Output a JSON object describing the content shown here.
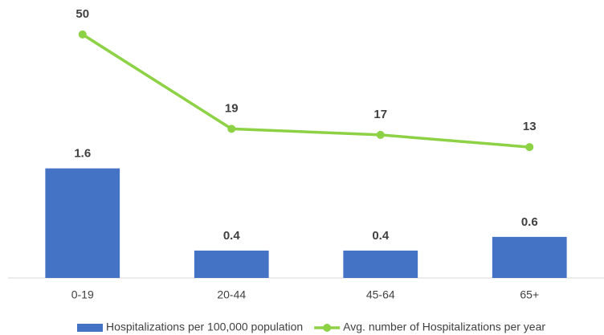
{
  "chart_data": {
    "type": "bar_line",
    "categories": [
      "0-19",
      "20-44",
      "45-64",
      "65+"
    ],
    "series": [
      {
        "name": "Hospitalizations per 100,000 population",
        "color": "#4472c4",
        "type": "bar",
        "axis": "y",
        "values": [
          1.6,
          0.4,
          0.4,
          0.6
        ]
      },
      {
        "name": "Avg. number of Hospitalizations per year",
        "color": "#8dd145",
        "type": "line",
        "axis": "y2",
        "values": [
          50,
          19,
          17,
          13
        ]
      }
    ],
    "ylim": [
      0,
      4
    ],
    "y2lim": [
      -30,
      60
    ],
    "legend": "bottom"
  }
}
